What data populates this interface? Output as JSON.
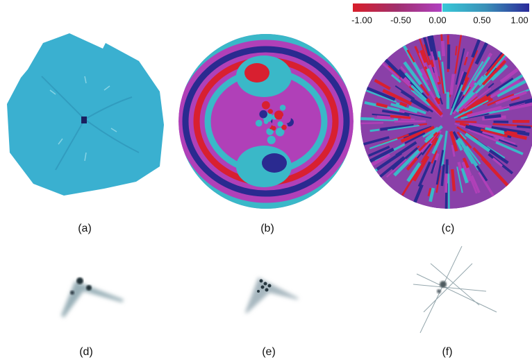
{
  "colorbar": {
    "ticks": [
      "-1.00",
      "-0.50",
      "0.00",
      "0.50",
      "1.00"
    ]
  },
  "panels": [
    {
      "label": "(a)"
    },
    {
      "label": "(b)"
    },
    {
      "label": "(c)"
    },
    {
      "label": "(d)"
    },
    {
      "label": "(e)"
    },
    {
      "label": "(f)"
    }
  ]
}
